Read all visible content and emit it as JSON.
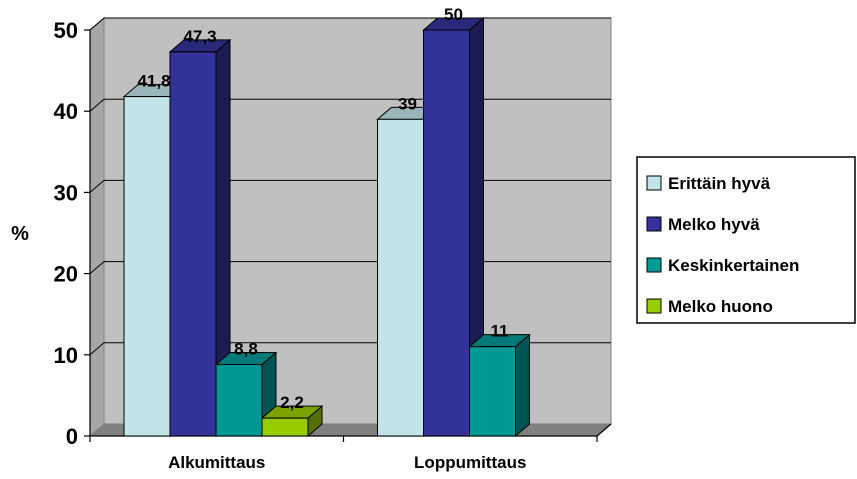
{
  "chart_data": {
    "type": "bar",
    "title": "",
    "xlabel": "",
    "ylabel": "%",
    "ylim": [
      0,
      50
    ],
    "yticks": [
      0,
      10,
      20,
      30,
      40,
      50
    ],
    "categories": [
      "Alkumittaus",
      "Loppumittaus"
    ],
    "series": [
      {
        "name": "Erittäin hyvä",
        "values": [
          41.8,
          39
        ],
        "labels": [
          "41,8",
          "39"
        ],
        "color": "#c2e3e8"
      },
      {
        "name": "Melko hyvä",
        "values": [
          47.3,
          50
        ],
        "labels": [
          "47,3",
          "50"
        ],
        "color": "#33339a"
      },
      {
        "name": "Keskinkertainen",
        "values": [
          8.8,
          11
        ],
        "labels": [
          "8,8",
          "11"
        ],
        "color": "#009996"
      },
      {
        "name": "Melko huono",
        "values": [
          2.2,
          null
        ],
        "labels": [
          "2,2",
          ""
        ],
        "color": "#99cc00"
      }
    ],
    "grid": true,
    "legend": "right",
    "style": "3d-clustered-column",
    "wall_color": "#c0c0c0"
  }
}
